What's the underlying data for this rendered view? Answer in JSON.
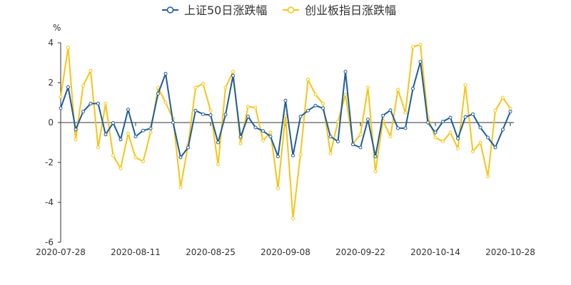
{
  "chart_data": {
    "type": "line",
    "unit": "%",
    "ylim": [
      -6,
      4
    ],
    "yticks": [
      4,
      2,
      0,
      -2,
      -4,
      -6
    ],
    "xtick_labels": [
      "2020-07-28",
      "2020-08-11",
      "2020-08-25",
      "2020-09-08",
      "2020-09-22",
      "2020-10-14",
      "2020-10-28"
    ],
    "grid": false,
    "legend_position": "top-center",
    "series": [
      {
        "name": "上证50日涨跌幅",
        "color": "#1f5c99",
        "values": [
          0.72,
          1.78,
          -0.35,
          0.55,
          0.95,
          0.95,
          -0.6,
          -0.02,
          -0.85,
          0.65,
          -0.7,
          -0.4,
          -0.3,
          1.45,
          2.45,
          0.0,
          -1.75,
          -1.25,
          0.6,
          0.42,
          0.37,
          -1.0,
          0.4,
          2.35,
          -0.72,
          0.3,
          -0.25,
          -0.42,
          -0.7,
          -1.7,
          1.1,
          -1.65,
          0.3,
          0.6,
          0.85,
          0.72,
          -0.7,
          -0.95,
          2.55,
          -1.1,
          -1.25,
          0.15,
          -1.7,
          0.35,
          0.62,
          -0.28,
          -0.28,
          1.7,
          3.05,
          0.0,
          -0.5,
          0.05,
          0.25,
          -0.8,
          0.28,
          0.42,
          -0.25,
          -0.75,
          -1.25,
          -0.35,
          0.55
        ]
      },
      {
        "name": "创业板指日涨跌幅",
        "color": "#f5c518",
        "values": [
          1.3,
          3.75,
          -0.85,
          1.85,
          2.6,
          -1.25,
          0.95,
          -1.65,
          -2.3,
          -0.55,
          -1.75,
          -1.95,
          -0.5,
          1.75,
          1.0,
          0.2,
          -3.25,
          -1.15,
          1.75,
          1.95,
          0.6,
          -2.1,
          1.75,
          2.55,
          -1.05,
          0.8,
          0.75,
          -0.9,
          -0.5,
          -3.3,
          0.35,
          -4.8,
          -1.6,
          2.15,
          1.4,
          0.95,
          -1.55,
          0.05,
          1.4,
          -1.05,
          -0.6,
          1.75,
          -2.45,
          0.1,
          -0.7,
          1.65,
          0.5,
          3.8,
          3.9,
          0.25,
          -0.75,
          -0.95,
          -0.5,
          -1.3,
          1.88,
          -1.45,
          -1.0,
          -2.7,
          0.6,
          1.25,
          0.7
        ]
      }
    ]
  }
}
